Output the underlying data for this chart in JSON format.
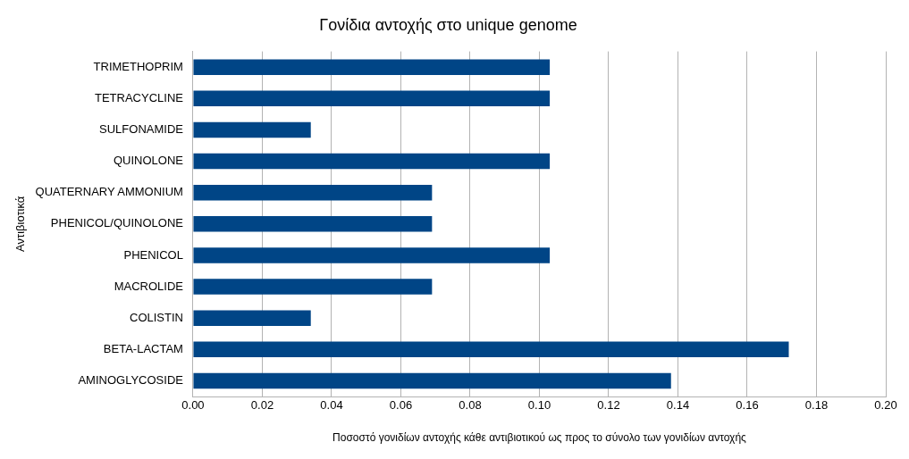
{
  "chart_data": {
    "type": "bar",
    "orientation": "horizontal",
    "title": "Γονίδια αντοχής στο unique genome",
    "xlabel": "Ποσοστό γονιδίων αντοχής κάθε αντιβιοτικού ως προς το σύνολο των γονιδίων αντοχής",
    "ylabel": "Αντιβιοτικά",
    "categories": [
      "TRIMETHOPRIM",
      "TETRACYCLINE",
      "SULFONAMIDE",
      "QUINOLONE",
      "QUATERNARY AMMONIUM",
      "PHENICOL/QUINOLONE",
      "PHENICOL",
      "MACROLIDE",
      "COLISTIN",
      "BETA-LACTAM",
      "AMINOGLYCOSIDE"
    ],
    "values": [
      0.103,
      0.103,
      0.034,
      0.103,
      0.069,
      0.069,
      0.103,
      0.069,
      0.034,
      0.172,
      0.138
    ],
    "color": "#004586",
    "xlim": [
      0,
      0.2
    ],
    "xticks": [
      {
        "value": 0,
        "label": "0.00"
      },
      {
        "value": 0.02,
        "label": "0.02"
      },
      {
        "value": 0.04,
        "label": "0.04"
      },
      {
        "value": 0.06,
        "label": "0.06"
      },
      {
        "value": 0.08,
        "label": "0.08"
      },
      {
        "value": 0.1,
        "label": "0.10"
      },
      {
        "value": 0.12,
        "label": "0.12"
      },
      {
        "value": 0.14,
        "label": "0.14"
      },
      {
        "value": 0.16,
        "label": "0.16"
      },
      {
        "value": 0.18,
        "label": "0.18"
      },
      {
        "value": 0.2,
        "label": "0.20"
      }
    ],
    "grid": "x",
    "legend": false
  }
}
